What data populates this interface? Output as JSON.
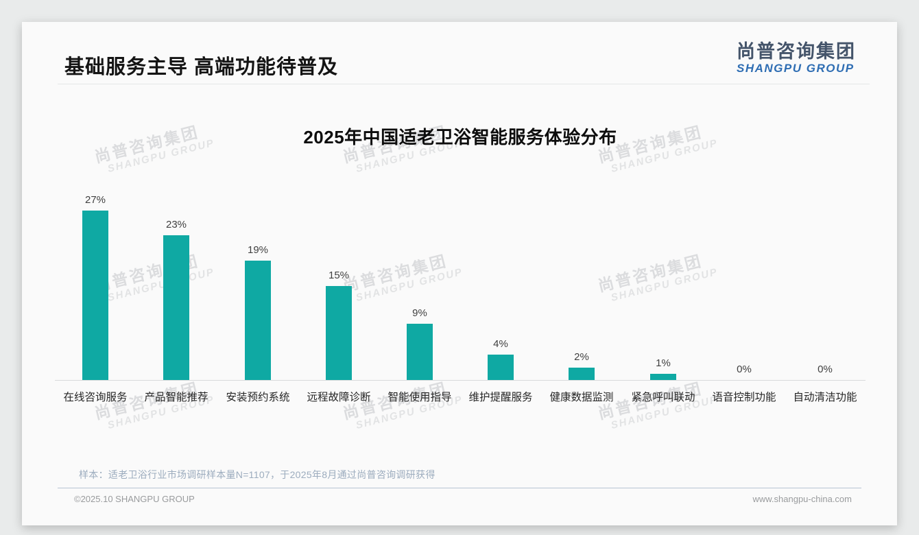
{
  "slide": {
    "title": "基础服务主导 高端功能待普及",
    "logo": {
      "cn": "尚普咨询集团",
      "en": "SHANGPU GROUP"
    },
    "watermark": {
      "cn": "尚普咨询集团",
      "en": "SHANGPU GROUP"
    },
    "source_note": "样本：适老卫浴行业市场调研样本量N=1107，于2025年8月通过尚普咨询调研获得",
    "footer": {
      "left": "©2025.10 SHANGPU GROUP",
      "right": "www.shangpu-china.com"
    },
    "colors": {
      "bar": "#0FA9A3",
      "logo_cn": "#44546A",
      "logo_en": "#2E6DB3",
      "note": "#9CACBE",
      "card_bg": "#FAFAFA",
      "page_bg": "#E9EBEB"
    }
  },
  "chart_data": {
    "type": "bar",
    "title": "2025年中国适老卫浴智能服务体验分布",
    "categories": [
      "在线咨询服务",
      "产品智能推荐",
      "安装预约系统",
      "远程故障诊断",
      "智能使用指导",
      "维护提醒服务",
      "健康数据监测",
      "紧急呼叫联动",
      "语音控制功能",
      "自动清洁功能"
    ],
    "values": [
      27,
      23,
      19,
      15,
      9,
      4,
      2,
      1,
      0,
      0
    ],
    "unit": "%",
    "ylim": [
      0,
      31
    ],
    "grid": false,
    "legend": "none",
    "bar_color": "#0FA9A3",
    "value_labels_shown": true,
    "xlabel": "",
    "ylabel": ""
  }
}
